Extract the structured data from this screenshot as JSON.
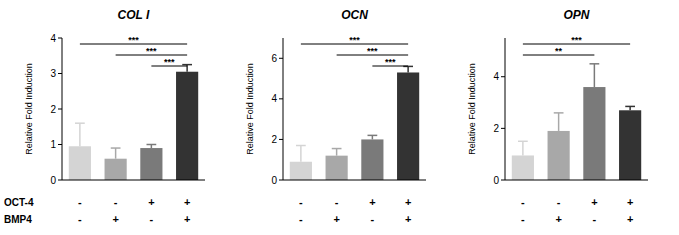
{
  "chart_data": [
    {
      "type": "bar",
      "title": "COL I",
      "y_label": "Relative Fold Induction",
      "categories": [
        null,
        null,
        null,
        null
      ],
      "values": [
        0.95,
        0.6,
        0.9,
        3.05
      ],
      "errors": [
        0.65,
        0.3,
        0.1,
        0.2
      ],
      "colors": [
        "#d4d4d4",
        "#a8a8a8",
        "#7a7a7a",
        "#333333"
      ],
      "ylim": [
        0,
        4
      ],
      "yticks": [
        0,
        1,
        2,
        3,
        4
      ],
      "grid": false,
      "annotations": [
        {
          "from": 0,
          "to": 3,
          "label": "***"
        },
        {
          "from": 1,
          "to": 3,
          "label": "***"
        },
        {
          "from": 2,
          "to": 3,
          "label": "***"
        }
      ]
    },
    {
      "type": "bar",
      "title": "OCN",
      "y_label": "Relative Fold Induction",
      "categories": [
        null,
        null,
        null,
        null
      ],
      "values": [
        0.9,
        1.2,
        2.0,
        5.3
      ],
      "errors": [
        0.8,
        0.35,
        0.2,
        0.3
      ],
      "colors": [
        "#d4d4d4",
        "#a8a8a8",
        "#7a7a7a",
        "#333333"
      ],
      "ylim": [
        0,
        7
      ],
      "yticks": [
        0,
        2,
        4,
        6
      ],
      "grid": false,
      "annotations": [
        {
          "from": 0,
          "to": 3,
          "label": "***"
        },
        {
          "from": 1,
          "to": 3,
          "label": "***"
        },
        {
          "from": 2,
          "to": 3,
          "label": "***"
        }
      ]
    },
    {
      "type": "bar",
      "title": "OPN",
      "y_label": "Relative Fold Induction",
      "categories": [
        null,
        null,
        null,
        null
      ],
      "values": [
        0.95,
        1.9,
        3.6,
        2.7
      ],
      "errors": [
        0.55,
        0.7,
        0.9,
        0.15
      ],
      "colors": [
        "#d4d4d4",
        "#a8a8a8",
        "#7a7a7a",
        "#333333"
      ],
      "ylim": [
        0,
        5.5
      ],
      "yticks": [
        0,
        2,
        4
      ],
      "grid": false,
      "annotations": [
        {
          "from": 0,
          "to": 3,
          "label": "***"
        },
        {
          "from": 0,
          "to": 2,
          "label": "**"
        }
      ]
    }
  ],
  "conditions": [
    {
      "label": "OCT-4",
      "marks": [
        "-",
        "-",
        "+",
        "+"
      ]
    },
    {
      "label": "BMP4",
      "marks": [
        "-",
        "+",
        "-",
        "+"
      ]
    }
  ]
}
